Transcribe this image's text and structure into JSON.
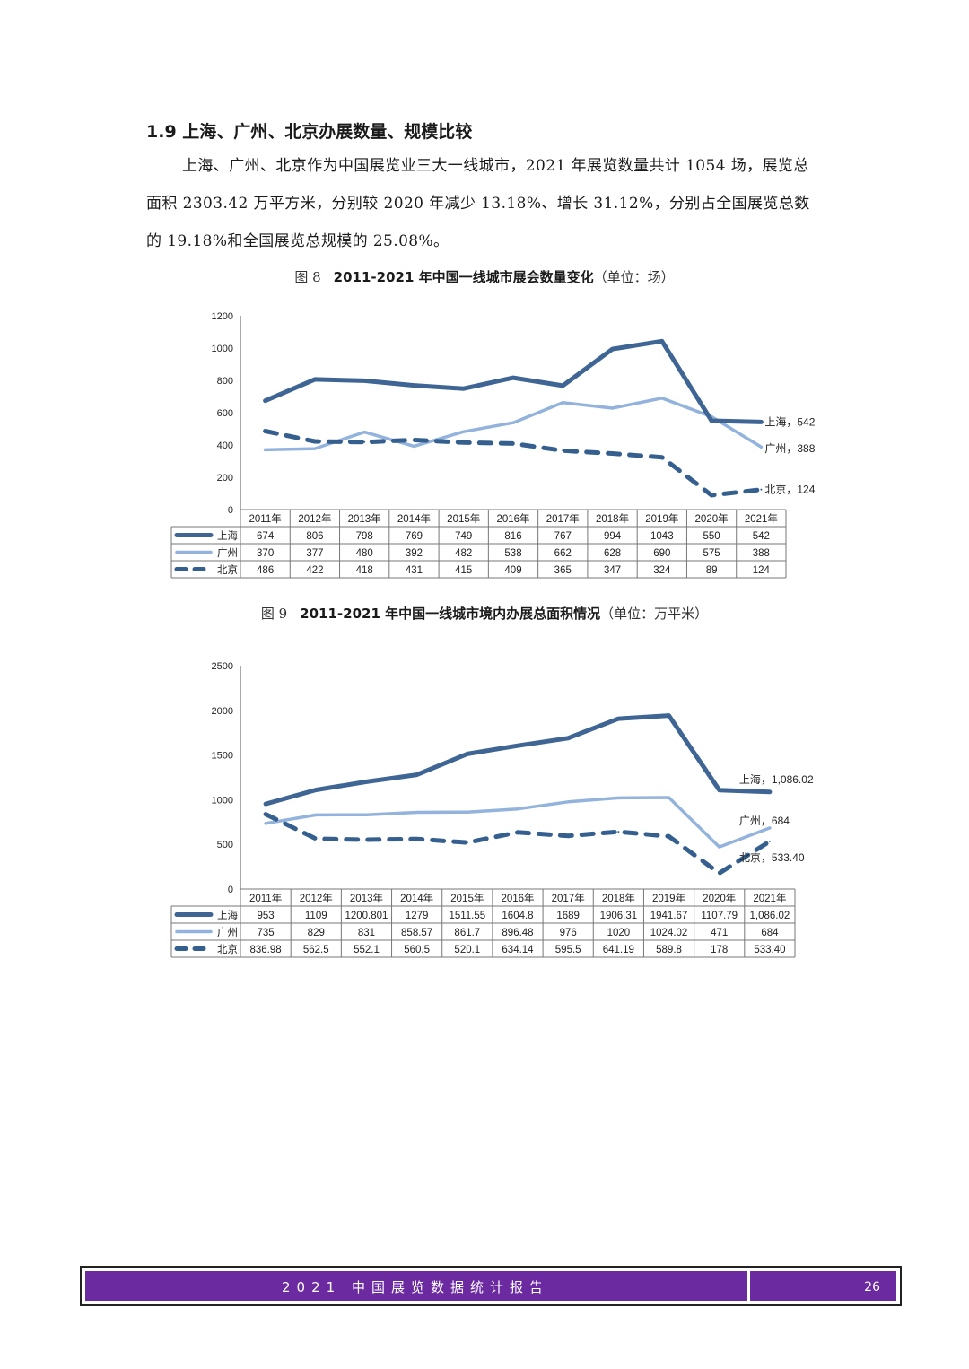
{
  "section": {
    "heading": "1.9 上海、广州、北京办展数量、规模比较",
    "paragraph": "上海、广州、北京作为中国展览业三大一线城市，2021 年展览数量共计 1054 场，展览总面积 2303.42 万平方米，分别较 2020 年减少 13.18%、增长 31.12%，分别占全国展览总数的 19.18%和全国展览总规模的 25.08%。"
  },
  "colors": {
    "shanghai": "#3e6594",
    "guangzhou": "#93b3dc",
    "beijing": "#355f8e",
    "footer": "#6b2aa0"
  },
  "chart_data": [
    {
      "type": "line",
      "fig_no": "图 8",
      "title": "2011-2021 年中国一线城市展会数量变化",
      "unit": "（单位：场）",
      "categories": [
        "2011年",
        "2012年",
        "2013年",
        "2014年",
        "2015年",
        "2016年",
        "2017年",
        "2018年",
        "2019年",
        "2020年",
        "2021年"
      ],
      "yticks": [
        "1200",
        "1000",
        "800",
        "600",
        "400",
        "200",
        "0"
      ],
      "ylim": [
        0,
        1200
      ],
      "series": [
        {
          "key": "shanghai",
          "name": "上海",
          "style": "solid-dark",
          "values": [
            674,
            806,
            798,
            769,
            749,
            816,
            767,
            994,
            1043,
            550,
            542
          ],
          "cells": [
            "674",
            "806",
            "798",
            "769",
            "749",
            "816",
            "767",
            "994",
            "1043",
            "550",
            "542"
          ],
          "end_label": "上海，542"
        },
        {
          "key": "guangzhou",
          "name": "广州",
          "style": "solid-light",
          "values": [
            370,
            377,
            480,
            392,
            482,
            538,
            662,
            628,
            690,
            575,
            388
          ],
          "cells": [
            "370",
            "377",
            "480",
            "392",
            "482",
            "538",
            "662",
            "628",
            "690",
            "575",
            "388"
          ],
          "end_label": "广州，388"
        },
        {
          "key": "beijing",
          "name": "北京",
          "style": "dashed",
          "values": [
            486,
            422,
            418,
            431,
            415,
            409,
            365,
            347,
            324,
            89,
            124
          ],
          "cells": [
            "486",
            "422",
            "418",
            "431",
            "415",
            "409",
            "365",
            "347",
            "324",
            "89",
            "124"
          ],
          "end_label": "北京，124"
        }
      ]
    },
    {
      "type": "line",
      "fig_no": "图 9",
      "title": "2011-2021 年中国一线城市境内办展总面积情况",
      "unit": "（单位：万平米）",
      "categories": [
        "2011年",
        "2012年",
        "2013年",
        "2014年",
        "2015年",
        "2016年",
        "2017年",
        "2018年",
        "2019年",
        "2020年",
        "2021年"
      ],
      "yticks": [
        "2500",
        "2000",
        "1500",
        "1000",
        "500",
        "0"
      ],
      "ylim": [
        0,
        2500
      ],
      "series": [
        {
          "key": "shanghai",
          "name": "上海",
          "style": "solid-dark",
          "values": [
            953,
            1109,
            1200.801,
            1279,
            1511.55,
            1604.8,
            1689,
            1906.31,
            1941.67,
            1107.79,
            1086.02
          ],
          "cells": [
            "953",
            "1109",
            "1200.801",
            "1279",
            "1511.55",
            "1604.8",
            "1689",
            "1906.31",
            "1941.67",
            "1107.79",
            "1,086.02"
          ],
          "end_label": "上海，1,086.02"
        },
        {
          "key": "guangzhou",
          "name": "广州",
          "style": "solid-light",
          "values": [
            735,
            829,
            831,
            858.57,
            861.7,
            896.48,
            976,
            1020,
            1024.02,
            471,
            684
          ],
          "cells": [
            "735",
            "829",
            "831",
            "858.57",
            "861.7",
            "896.48",
            "976",
            "1020",
            "1024.02",
            "471",
            "684"
          ],
          "end_label": "广州，684"
        },
        {
          "key": "beijing",
          "name": "北京",
          "style": "dashed",
          "values": [
            836.98,
            562.5,
            552.1,
            560.5,
            520.1,
            634.14,
            595.5,
            641.19,
            589.8,
            178,
            533.4
          ],
          "cells": [
            "836.98",
            "562.5",
            "552.1",
            "560.5",
            "520.1",
            "634.14",
            "595.5",
            "641.19",
            "589.8",
            "178",
            "533.40"
          ],
          "end_label": "北京，533.40"
        }
      ]
    }
  ],
  "footer": {
    "title": "2021 中国展览数据统计报告",
    "page": "26"
  }
}
